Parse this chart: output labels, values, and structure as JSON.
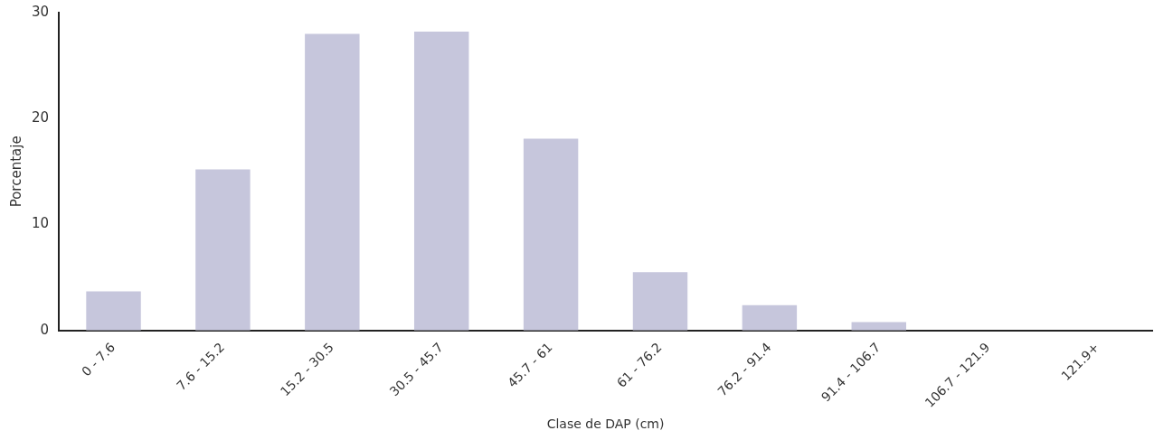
{
  "chart_data": {
    "type": "bar",
    "xlabel": "Clase de DAP (cm)",
    "ylabel": "Porcentaje",
    "categories": [
      "0 - 7.6",
      "7.6 - 15.2",
      "15.2 - 30.5",
      "30.5 - 45.7",
      "45.7 - 61",
      "61 - 76.2",
      "76.2 - 91.4",
      "91.4 - 106.7",
      "106.7 - 121.9",
      "121.9+"
    ],
    "values": [
      3.7,
      15.2,
      28.0,
      28.2,
      18.1,
      5.5,
      2.4,
      0.8,
      0,
      0
    ],
    "color": "#c6c6dc",
    "ylim": [
      0,
      30
    ],
    "yticks": [
      0,
      10,
      20,
      30
    ],
    "grid": false,
    "legend": false
  }
}
